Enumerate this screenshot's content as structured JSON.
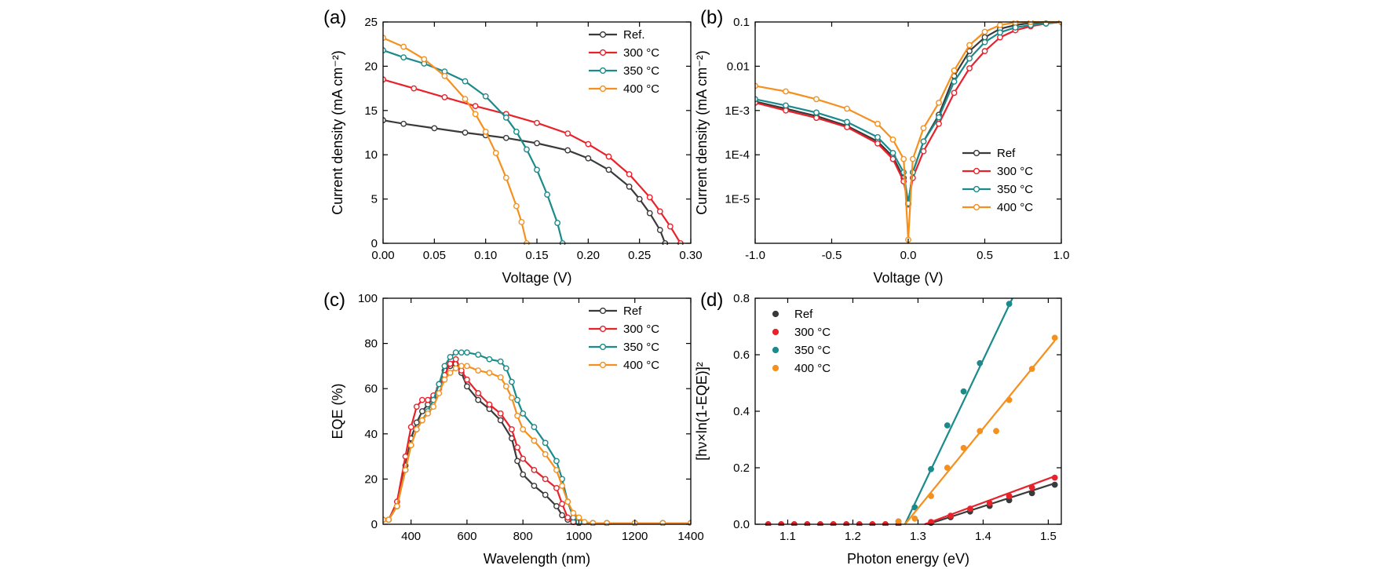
{
  "chart_data": [
    {
      "panel_label": "(a)",
      "type": "line",
      "xlabel": "Voltage (V)",
      "ylabel": "Current density (mA cm⁻²)",
      "xlim": [
        0,
        0.3
      ],
      "ylim": [
        0,
        25
      ],
      "xticks": [
        "0.00",
        "0.05",
        "0.10",
        "0.15",
        "0.20",
        "0.25",
        "0.30"
      ],
      "xtick_values": [
        0,
        0.05,
        0.1,
        0.15,
        0.2,
        0.25,
        0.3
      ],
      "yticks": [
        "0",
        "5",
        "10",
        "15",
        "20",
        "25"
      ],
      "ytick_values": [
        0,
        5,
        10,
        15,
        20,
        25
      ],
      "legend_position": "top-right",
      "series": [
        {
          "name": "Ref.",
          "color": "#3a3a3a",
          "x": [
            0,
            0.02,
            0.05,
            0.08,
            0.1,
            0.12,
            0.15,
            0.18,
            0.2,
            0.22,
            0.24,
            0.25,
            0.26,
            0.27,
            0.275
          ],
          "y": [
            13.9,
            13.5,
            13.0,
            12.5,
            12.2,
            11.9,
            11.3,
            10.5,
            9.6,
            8.3,
            6.4,
            5.0,
            3.4,
            1.5,
            0
          ]
        },
        {
          "name": "300 °C",
          "color": "#e8222b",
          "x": [
            0,
            0.03,
            0.06,
            0.09,
            0.12,
            0.15,
            0.18,
            0.2,
            0.22,
            0.24,
            0.26,
            0.27,
            0.28,
            0.29
          ],
          "y": [
            18.5,
            17.5,
            16.5,
            15.5,
            14.6,
            13.6,
            12.4,
            11.2,
            9.8,
            7.8,
            5.2,
            3.6,
            1.9,
            0
          ]
        },
        {
          "name": "350 °C",
          "color": "#1b8a8a",
          "x": [
            0,
            0.02,
            0.04,
            0.06,
            0.08,
            0.1,
            0.12,
            0.13,
            0.14,
            0.15,
            0.16,
            0.17,
            0.175
          ],
          "y": [
            21.8,
            21.0,
            20.3,
            19.4,
            18.3,
            16.6,
            14.2,
            12.6,
            10.6,
            8.3,
            5.5,
            2.3,
            0
          ]
        },
        {
          "name": "400 °C",
          "color": "#f5901e",
          "x": [
            0,
            0.02,
            0.04,
            0.06,
            0.08,
            0.09,
            0.1,
            0.11,
            0.12,
            0.13,
            0.135,
            0.14
          ],
          "y": [
            23.2,
            22.2,
            20.8,
            18.9,
            16.3,
            14.6,
            12.6,
            10.2,
            7.4,
            4.2,
            2.4,
            0
          ]
        }
      ]
    },
    {
      "panel_label": "(b)",
      "type": "line",
      "xlabel": "Voltage (V)",
      "ylabel": "Current density (mA cm⁻²)",
      "xlim": [
        -1.0,
        1.0
      ],
      "ylim": [
        1e-06,
        0.1
      ],
      "yscale": "log",
      "xticks": [
        "-1.0",
        "-0.5",
        "0.0",
        "0.5",
        "1.0"
      ],
      "xtick_values": [
        -1.0,
        -0.5,
        0.0,
        0.5,
        1.0
      ],
      "yticks": [
        "1E-5",
        "1E-4",
        "1E-3",
        "0.01",
        "0.1"
      ],
      "ytick_values": [
        1e-05,
        0.0001,
        0.001,
        0.01,
        0.1
      ],
      "legend_position": "bottom-right",
      "series": [
        {
          "name": "Ref",
          "color": "#3a3a3a",
          "x": [
            -1.0,
            -0.8,
            -0.6,
            -0.4,
            -0.2,
            -0.1,
            -0.03,
            0,
            0.03,
            0.1,
            0.2,
            0.3,
            0.4,
            0.5,
            0.6,
            0.7,
            0.8,
            1.0
          ],
          "y": [
            0.0016,
            0.0011,
            0.00075,
            0.00045,
            0.0002,
            9e-05,
            3e-05,
            8e-06,
            4e-05,
            0.0002,
            0.0008,
            0.006,
            0.022,
            0.045,
            0.07,
            0.085,
            0.095,
            0.1
          ]
        },
        {
          "name": "300 °C",
          "color": "#e8222b",
          "x": [
            -1.0,
            -0.8,
            -0.6,
            -0.4,
            -0.2,
            -0.1,
            -0.03,
            0,
            0.03,
            0.1,
            0.2,
            0.3,
            0.4,
            0.5,
            0.6,
            0.7,
            0.8,
            0.9,
            1.0
          ],
          "y": [
            0.0015,
            0.001,
            0.00068,
            0.00042,
            0.00018,
            8e-05,
            2.5e-05,
            7.5e-06,
            3e-05,
            0.00012,
            0.0005,
            0.0025,
            0.009,
            0.022,
            0.045,
            0.065,
            0.08,
            0.092,
            0.1
          ]
        },
        {
          "name": "350 °C",
          "color": "#1b8a8a",
          "x": [
            -1.0,
            -0.8,
            -0.6,
            -0.4,
            -0.2,
            -0.1,
            -0.03,
            0,
            0.03,
            0.1,
            0.2,
            0.3,
            0.4,
            0.5,
            0.6,
            0.7,
            0.8,
            0.9,
            1.0
          ],
          "y": [
            0.0018,
            0.0013,
            0.0009,
            0.00055,
            0.00025,
            0.00011,
            4e-05,
            8e-06,
            4e-05,
            0.0002,
            0.0007,
            0.0045,
            0.015,
            0.035,
            0.058,
            0.075,
            0.085,
            0.092,
            0.1
          ]
        },
        {
          "name": "400 °C",
          "color": "#f5901e",
          "x": [
            -1.0,
            -0.8,
            -0.6,
            -0.4,
            -0.2,
            -0.1,
            -0.03,
            0,
            0.03,
            0.1,
            0.2,
            0.3,
            0.4,
            0.5,
            0.6,
            0.7,
            0.8,
            1.0
          ],
          "y": [
            0.0036,
            0.0027,
            0.0018,
            0.0011,
            0.0005,
            0.00022,
            8e-05,
            1.2e-06,
            8e-05,
            0.0004,
            0.0015,
            0.008,
            0.03,
            0.06,
            0.085,
            0.098,
            0.1,
            0.1
          ]
        }
      ]
    },
    {
      "panel_label": "(c)",
      "type": "line",
      "xlabel": "Wavelength (nm)",
      "ylabel": "EQE (%)",
      "xlim": [
        300,
        1400
      ],
      "ylim": [
        0,
        100
      ],
      "xticks": [
        "400",
        "600",
        "800",
        "1000",
        "1200",
        "1400"
      ],
      "xtick_values": [
        400,
        600,
        800,
        1000,
        1200,
        1400
      ],
      "yticks": [
        "0",
        "20",
        "40",
        "60",
        "80",
        "100"
      ],
      "ytick_values": [
        0,
        20,
        40,
        60,
        80,
        100
      ],
      "legend_position": "top-right",
      "series": [
        {
          "name": "Ref",
          "color": "#3a3a3a",
          "x": [
            300,
            320,
            350,
            380,
            400,
            420,
            440,
            460,
            480,
            500,
            520,
            540,
            560,
            580,
            600,
            640,
            680,
            720,
            760,
            780,
            800,
            840,
            880,
            920,
            940,
            960,
            980,
            1000,
            1050,
            1100,
            1200,
            1300,
            1400
          ],
          "y": [
            2,
            2,
            8,
            26,
            38,
            45,
            50,
            53,
            56,
            62,
            68,
            70,
            71,
            67,
            61,
            55,
            51,
            46,
            38,
            28,
            22,
            17,
            13,
            8,
            4,
            2,
            1,
            1,
            0.5,
            0.5,
            0.5,
            0.5,
            0.5
          ]
        },
        {
          "name": "300 °C",
          "color": "#e8222b",
          "x": [
            300,
            320,
            350,
            380,
            400,
            420,
            440,
            460,
            480,
            500,
            520,
            540,
            560,
            580,
            600,
            640,
            680,
            720,
            760,
            780,
            800,
            840,
            880,
            920,
            940,
            960,
            980,
            1000,
            1050,
            1100,
            1200,
            1300,
            1400
          ],
          "y": [
            2,
            2,
            10,
            30,
            43,
            52,
            55,
            55,
            57,
            60,
            66,
            71,
            73,
            68,
            64,
            58,
            53,
            49,
            42,
            34,
            29,
            24,
            20,
            16,
            9,
            3,
            1,
            0.5,
            0.5,
            0.5,
            0.5,
            0.5,
            0.5
          ]
        },
        {
          "name": "350 °C",
          "color": "#1b8a8a",
          "x": [
            300,
            320,
            350,
            380,
            400,
            420,
            440,
            460,
            480,
            500,
            520,
            540,
            560,
            580,
            600,
            640,
            680,
            720,
            740,
            760,
            780,
            800,
            840,
            880,
            920,
            940,
            960,
            980,
            1000,
            1050,
            1100,
            1200,
            1300,
            1400
          ],
          "y": [
            2,
            2,
            8,
            24,
            35,
            42,
            46,
            50,
            55,
            62,
            70,
            74,
            76,
            76,
            76,
            75,
            73,
            72,
            69,
            63,
            55,
            49,
            43,
            36,
            28,
            20,
            10,
            3,
            1,
            0.5,
            0.5,
            0.5,
            0.5,
            0.5
          ]
        },
        {
          "name": "400 °C",
          "color": "#f5901e",
          "x": [
            300,
            320,
            350,
            380,
            400,
            420,
            440,
            460,
            480,
            500,
            520,
            540,
            560,
            580,
            600,
            640,
            680,
            720,
            740,
            760,
            780,
            800,
            840,
            880,
            920,
            940,
            960,
            980,
            1000,
            1020,
            1050,
            1100,
            1200,
            1300,
            1400
          ],
          "y": [
            2,
            2,
            8,
            24,
            35,
            42,
            46,
            49,
            52,
            58,
            64,
            67,
            69,
            70,
            70,
            68,
            67,
            65,
            61,
            56,
            48,
            42,
            37,
            31,
            24,
            17,
            10,
            5,
            3,
            1,
            0.5,
            0.5,
            0.5,
            0.5,
            0.5
          ]
        }
      ]
    },
    {
      "panel_label": "(d)",
      "type": "scatter",
      "xlabel": "Photon energy (eV)",
      "ylabel": "[hν×ln(1-EQE)]²",
      "xlim": [
        1.05,
        1.52
      ],
      "ylim": [
        0,
        0.8
      ],
      "xticks": [
        "1.1",
        "1.2",
        "1.3",
        "1.4",
        "1.5"
      ],
      "xtick_values": [
        1.1,
        1.2,
        1.3,
        1.4,
        1.5
      ],
      "yticks": [
        "0.0",
        "0.2",
        "0.4",
        "0.6",
        "0.8"
      ],
      "ytick_values": [
        0,
        0.2,
        0.4,
        0.6,
        0.8
      ],
      "legend_position": "top-left",
      "series": [
        {
          "name": "Ref",
          "color": "#3a3a3a",
          "x": [
            1.07,
            1.09,
            1.11,
            1.13,
            1.15,
            1.17,
            1.19,
            1.21,
            1.23,
            1.25,
            1.27,
            1.32,
            1.35,
            1.38,
            1.41,
            1.44,
            1.475,
            1.51
          ],
          "y": [
            0,
            0,
            0,
            0,
            0,
            0,
            0,
            0,
            0,
            0,
            0,
            0.005,
            0.025,
            0.045,
            0.065,
            0.085,
            0.11,
            0.14
          ],
          "fit": {
            "x": [
              1.315,
              1.51
            ],
            "y": [
              0,
              0.145
            ]
          }
        },
        {
          "name": "300 °C",
          "color": "#e8222b",
          "x": [
            1.07,
            1.09,
            1.11,
            1.13,
            1.15,
            1.17,
            1.19,
            1.21,
            1.23,
            1.25,
            1.27,
            1.32,
            1.35,
            1.38,
            1.41,
            1.44,
            1.475,
            1.51
          ],
          "y": [
            0,
            0,
            0,
            0,
            0,
            0,
            0,
            0,
            0,
            0,
            0,
            0.008,
            0.03,
            0.055,
            0.075,
            0.1,
            0.13,
            0.165
          ],
          "fit": {
            "x": [
              1.31,
              1.51
            ],
            "y": [
              0,
              0.17
            ]
          }
        },
        {
          "name": "350 °C",
          "color": "#1b8a8a",
          "x": [
            1.27,
            1.295,
            1.32,
            1.345,
            1.37,
            1.395,
            1.44
          ],
          "y": [
            0.01,
            0.06,
            0.195,
            0.35,
            0.47,
            0.57,
            0.78
          ],
          "fit": {
            "x": [
              1.28,
              1.445
            ],
            "y": [
              0,
              0.8
            ]
          }
        },
        {
          "name": "400 °C",
          "color": "#f5901e",
          "x": [
            1.27,
            1.295,
            1.32,
            1.345,
            1.37,
            1.395,
            1.42,
            1.44,
            1.475,
            1.51
          ],
          "y": [
            0.01,
            0.02,
            0.1,
            0.2,
            0.27,
            0.33,
            0.33,
            0.44,
            0.55,
            0.66
          ],
          "fit": {
            "x": [
              1.28,
              1.51
            ],
            "y": [
              0,
              0.65
            ]
          }
        }
      ]
    }
  ]
}
